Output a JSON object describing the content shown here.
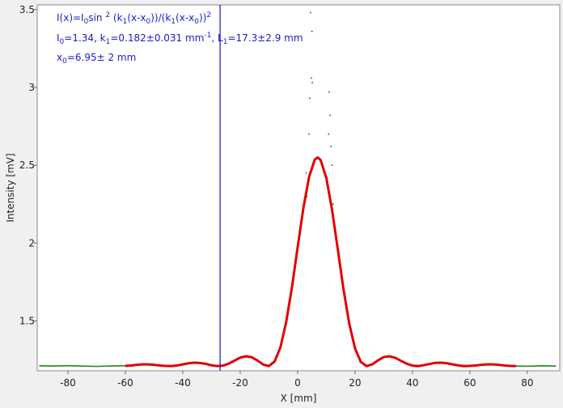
{
  "chart_data": {
    "type": "line",
    "xlabel": "X [mm]",
    "ylabel": "Intensity [mV]",
    "annotations": {
      "formula": [
        "I(x)=I",
        "0",
        "sin ",
        "2",
        " (k",
        "1",
        "(x-x",
        "0",
        "))/(k",
        "1",
        "(x-x",
        "0",
        "))",
        "2"
      ],
      "params": [
        "I",
        "0",
        "=1.34,  k",
        "1",
        "=0.182±0.031 mm",
        "-1",
        ",   L",
        "1",
        "=17.3±2.9 mm"
      ],
      "offset": [
        "x",
        "0",
        "=6.95±  2 mm"
      ]
    },
    "xlim": [
      -90.7,
      91.3
    ],
    "ylim": [
      1.18,
      3.53
    ],
    "xticks": [
      -80,
      -60,
      -40,
      -20,
      0,
      20,
      40,
      60,
      80
    ],
    "yticks": [
      1.5,
      2,
      2.5,
      3,
      3.5
    ],
    "cursor_x": -27,
    "cursor_color": "#1010c0",
    "series": [
      {
        "type": "line",
        "color": "#1a8a1a",
        "x": [
          -90,
          -85,
          -80,
          -75,
          -70,
          -65,
          -60,
          0,
          60,
          65,
          70,
          75,
          80,
          85,
          90
        ],
        "values": [
          1.212,
          1.21,
          1.213,
          1.21,
          1.208,
          1.211,
          1.212,
          null,
          1.211,
          1.22,
          1.218,
          1.211,
          1.209,
          1.212,
          1.21
        ]
      },
      {
        "type": "line",
        "color": "#e00000",
        "x": [
          -60,
          -58,
          -56,
          -54,
          -52,
          -50,
          -48,
          -46,
          -44,
          -42,
          -40,
          -38,
          -36,
          -34,
          -32,
          -30,
          -28,
          -26,
          -24,
          -22,
          -20,
          -18,
          -16,
          -14,
          -12,
          -10,
          -8,
          -6,
          -4,
          -2,
          0,
          2,
          4,
          6,
          7,
          8,
          10,
          12,
          14,
          16,
          18,
          20,
          22,
          24,
          26,
          28,
          30,
          32,
          34,
          36,
          38,
          40,
          42,
          44,
          46,
          48,
          50,
          52,
          54,
          56,
          58,
          60,
          62,
          64,
          66,
          68,
          70,
          72,
          74,
          76
        ],
        "values": [
          1.211,
          1.214,
          1.218,
          1.221,
          1.221,
          1.218,
          1.214,
          1.211,
          1.21,
          1.214,
          1.221,
          1.228,
          1.232,
          1.23,
          1.224,
          1.215,
          1.21,
          1.213,
          1.225,
          1.245,
          1.264,
          1.273,
          1.267,
          1.246,
          1.22,
          1.21,
          1.24,
          1.33,
          1.491,
          1.713,
          1.972,
          2.224,
          2.426,
          2.537,
          2.55,
          2.534,
          2.418,
          2.213,
          1.959,
          1.701,
          1.481,
          1.324,
          1.237,
          1.21,
          1.221,
          1.247,
          1.268,
          1.273,
          1.263,
          1.244,
          1.225,
          1.213,
          1.21,
          1.216,
          1.224,
          1.231,
          1.232,
          1.228,
          1.221,
          1.214,
          1.21,
          1.211,
          1.214,
          1.218,
          1.221,
          1.221,
          1.218,
          1.214,
          1.211,
          1.21
        ]
      },
      {
        "type": "scatter",
        "color": "#0d5a0d",
        "x": [
          4.5,
          5,
          4.8,
          5.1,
          4.2,
          4,
          11,
          11.3,
          10.8,
          12,
          3,
          12.3,
          3.2,
          11.6
        ],
        "values": [
          3.48,
          3.36,
          3.06,
          3.03,
          2.93,
          2.7,
          2.97,
          2.82,
          2.7,
          2.5,
          2.45,
          2.25,
          2.3,
          2.62
        ]
      }
    ]
  }
}
